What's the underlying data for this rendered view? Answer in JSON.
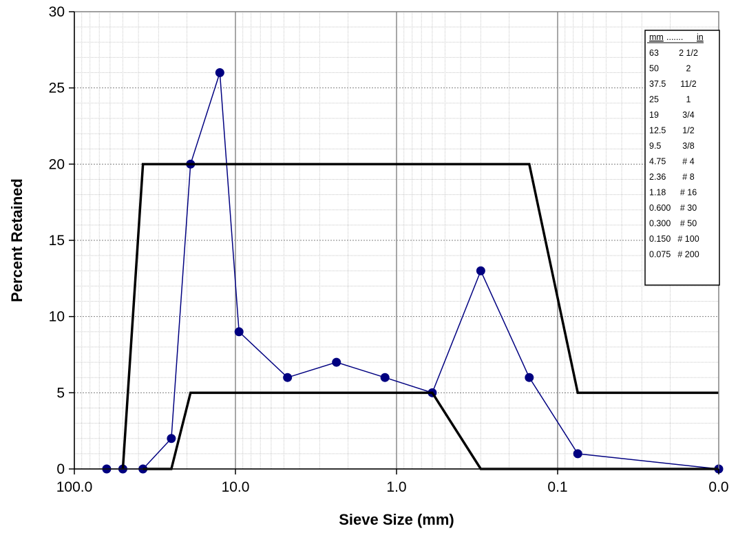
{
  "chart_data": {
    "type": "line",
    "xlabel": "Sieve Size (mm)",
    "ylabel": "Percent Retained",
    "x_scale": "log-reversed",
    "xlim": [
      100,
      0.01
    ],
    "ylim": [
      0,
      30
    ],
    "x_tick_labels": [
      "100.0",
      "10.0",
      "1.0",
      "0.1",
      "0.0"
    ],
    "y_ticks": [
      0,
      5,
      10,
      15,
      20,
      25,
      30
    ],
    "grid": true,
    "series": [
      {
        "role": "measured",
        "color": "#000080",
        "marker": "circle",
        "points": [
          {
            "x": 63,
            "y": 0
          },
          {
            "x": 50,
            "y": 0
          },
          {
            "x": 37.5,
            "y": 0
          },
          {
            "x": 25,
            "y": 2
          },
          {
            "x": 19,
            "y": 20
          },
          {
            "x": 12.5,
            "y": 26
          },
          {
            "x": 9.5,
            "y": 9
          },
          {
            "x": 4.75,
            "y": 6
          },
          {
            "x": 2.36,
            "y": 7
          },
          {
            "x": 1.18,
            "y": 6
          },
          {
            "x": 0.6,
            "y": 5
          },
          {
            "x": 0.3,
            "y": 13
          },
          {
            "x": 0.15,
            "y": 6
          },
          {
            "x": 0.075,
            "y": 1
          },
          {
            "x": 0.01,
            "y": 0
          }
        ]
      },
      {
        "role": "upper-limit",
        "color": "#000000",
        "points": [
          {
            "x": 50,
            "y": 0
          },
          {
            "x": 37.5,
            "y": 20
          },
          {
            "x": 0.15,
            "y": 20
          },
          {
            "x": 0.075,
            "y": 5
          },
          {
            "x": 0.01,
            "y": 5
          }
        ]
      },
      {
        "role": "lower-limit",
        "color": "#000000",
        "points": [
          {
            "x": 37.5,
            "y": 0
          },
          {
            "x": 25,
            "y": 0
          },
          {
            "x": 19,
            "y": 5
          },
          {
            "x": 0.6,
            "y": 5
          },
          {
            "x": 0.3,
            "y": 0
          },
          {
            "x": 0.01,
            "y": 0
          }
        ]
      }
    ]
  },
  "legend": {
    "header_mm": "mm",
    "header_dots": ".......",
    "header_in": "in",
    "rows": [
      {
        "mm": "63",
        "in": "2 1/2"
      },
      {
        "mm": "50",
        "in": "2"
      },
      {
        "mm": "37.5",
        "in": "11/2"
      },
      {
        "mm": "25",
        "in": "1"
      },
      {
        "mm": "19",
        "in": "3/4"
      },
      {
        "mm": "12.5",
        "in": "1/2"
      },
      {
        "mm": "9.5",
        "in": "3/8"
      },
      {
        "mm": "4.75",
        "in": "# 4"
      },
      {
        "mm": "2.36",
        "in": "# 8"
      },
      {
        "mm": "1.18",
        "in": "# 16"
      },
      {
        "mm": "0.600",
        "in": "# 30"
      },
      {
        "mm": "0.300",
        "in": "# 50"
      },
      {
        "mm": "0.150",
        "in": "# 100"
      },
      {
        "mm": "0.075",
        "in": "# 200"
      }
    ]
  }
}
